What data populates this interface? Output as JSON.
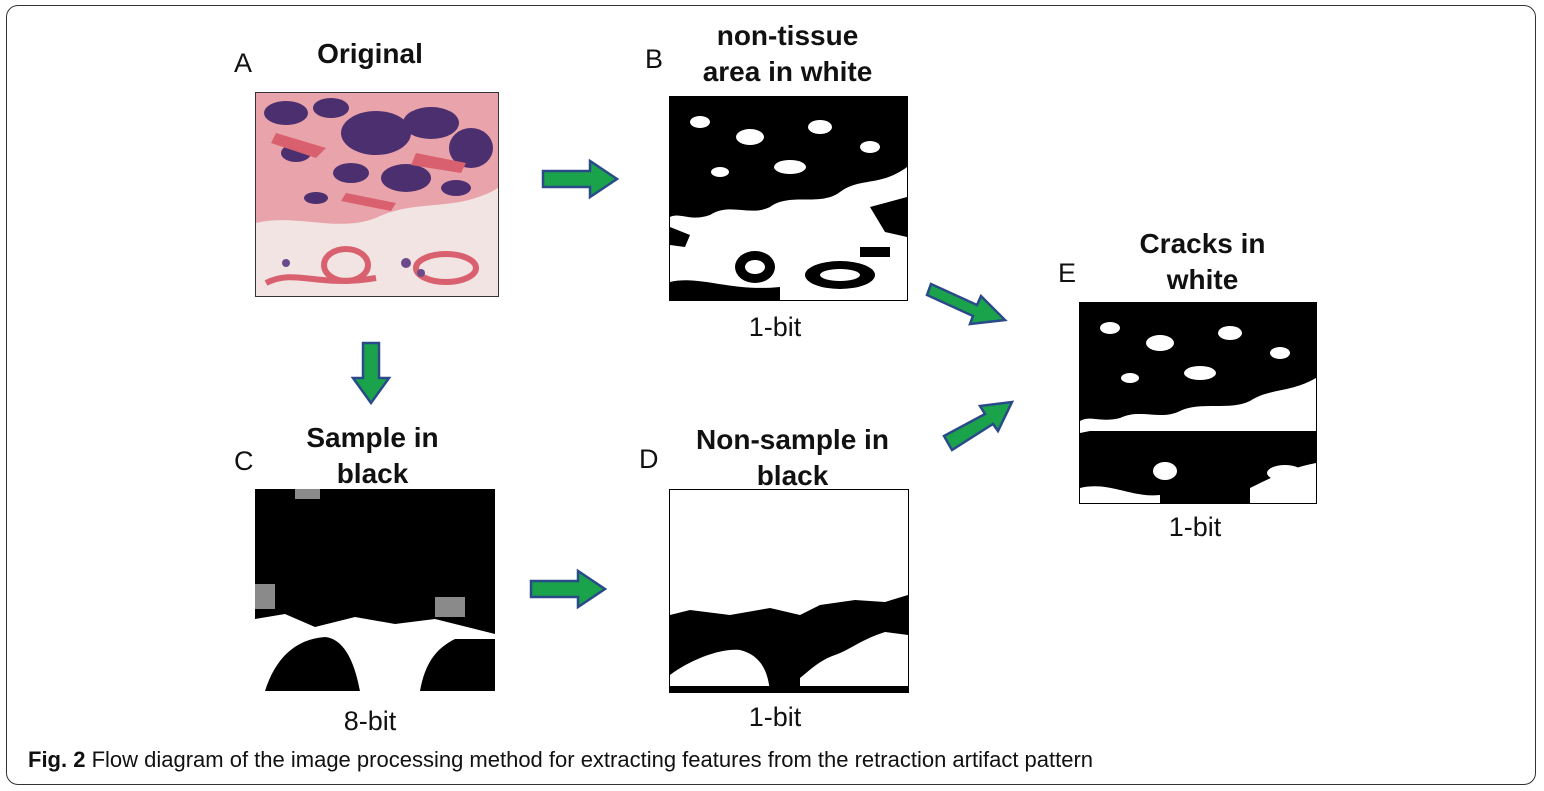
{
  "panels": {
    "a": {
      "letter": "A",
      "title": "Original",
      "bits": ""
    },
    "b": {
      "letter": "B",
      "title_line1": "non-tissue",
      "title_line2": "area in white",
      "bits": "1-bit"
    },
    "c": {
      "letter": "C",
      "title_line1": "Sample in",
      "title_line2": "black",
      "bits": "8-bit"
    },
    "d": {
      "letter": "D",
      "title_line1": "Non-sample in",
      "title_line2": "black",
      "bits": "1-bit"
    },
    "e": {
      "letter": "E",
      "title_line1": "Cracks in",
      "title_line2": "white",
      "bits": "1-bit"
    }
  },
  "caption": {
    "label": "Fig. 2",
    "text": " Flow diagram of the image processing method for extracting features from the retraction artifact pattern"
  },
  "colors": {
    "arrow_fill": "#1aa34a",
    "arrow_outline": "#2b4a8a",
    "tissue_pink": "#e07a86",
    "tissue_purple": "#4b2f6e",
    "background_pink": "#f3e6e4"
  }
}
